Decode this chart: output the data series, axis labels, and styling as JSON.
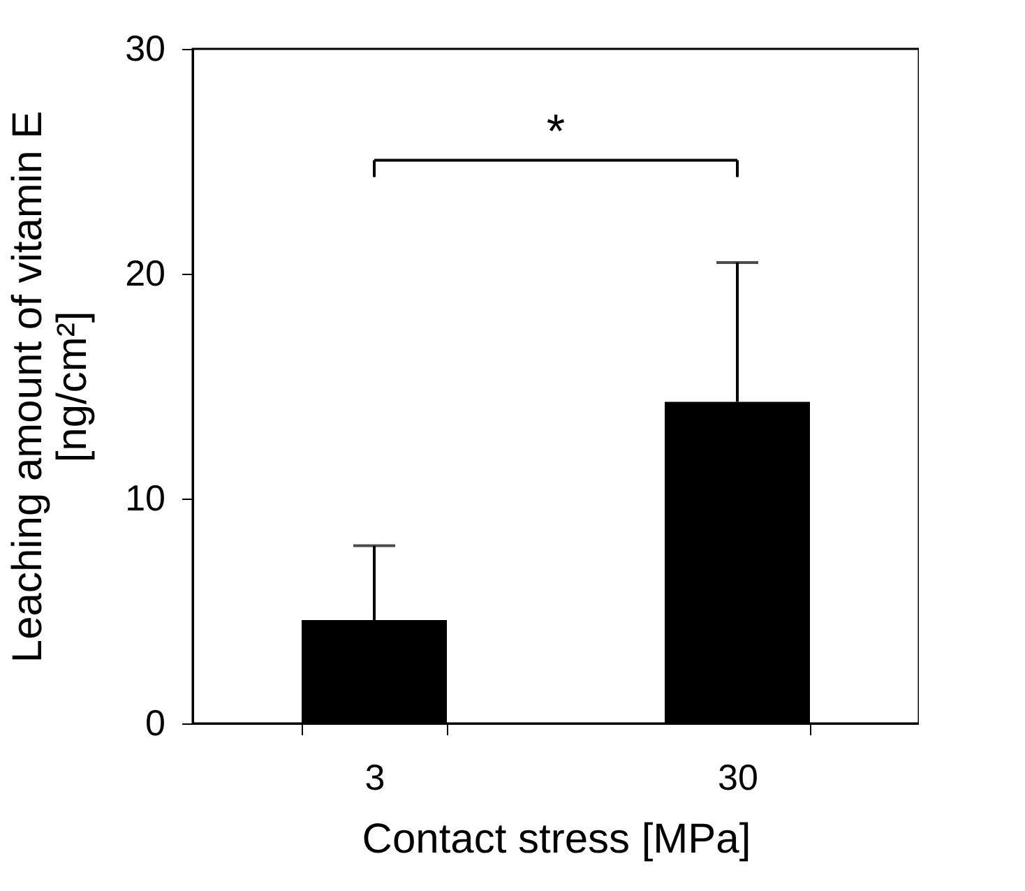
{
  "chart_data": {
    "type": "bar",
    "xlabel": "Contact stress [MPa]",
    "ylabel": "Leaching amount of vitamin E\n[ng/cm²]",
    "categories": [
      "3",
      "30"
    ],
    "values": [
      4.6,
      14.3
    ],
    "color": "#000000",
    "errors": [
      [
        4.6,
        7.9
      ],
      [
        14.3,
        20.5
      ]
    ],
    "ylim": [
      0,
      30
    ],
    "yticks": [
      0,
      10,
      20,
      30
    ],
    "annotations": [
      "*"
    ]
  }
}
